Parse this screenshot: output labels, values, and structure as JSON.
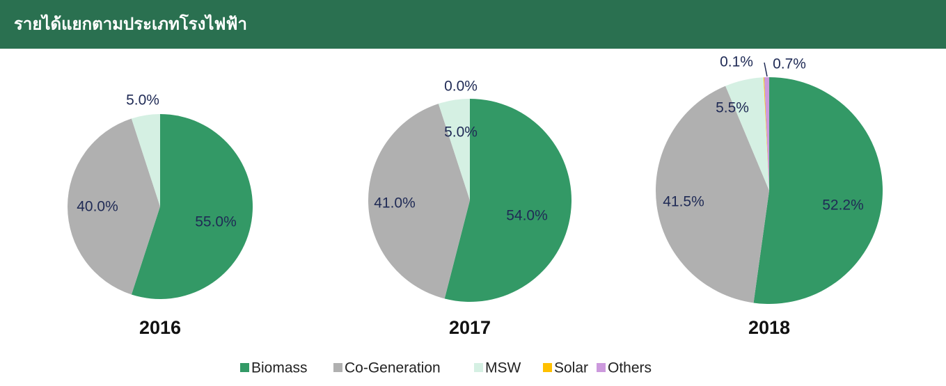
{
  "header": {
    "title": "รายได้แยกตามประเภทโรงไฟฟ้า"
  },
  "legend": [
    {
      "name": "Biomass",
      "color": "#339966"
    },
    {
      "name": "Co-Generation",
      "color": "#b0b0b0"
    },
    {
      "name": "MSW",
      "color": "#d5f0e3"
    },
    {
      "name": "Solar",
      "color": "#ffc000"
    },
    {
      "name": "Others",
      "color": "#cc99dd"
    }
  ],
  "chart_data": [
    {
      "type": "pie",
      "title": "2016",
      "values": [
        55,
        40,
        5,
        null,
        null
      ],
      "value_labels": [
        "55.0%",
        "40.0%",
        "5.0%",
        null,
        null
      ]
    },
    {
      "type": "pie",
      "title": "2017",
      "values": [
        54,
        41,
        5,
        0,
        null
      ],
      "value_labels": [
        "54.0%",
        "41.0%",
        "5.0%",
        "0.0%",
        null
      ]
    },
    {
      "type": "pie",
      "title": "2018",
      "values": [
        52.2,
        41.5,
        5.5,
        0.1,
        0.7
      ],
      "value_labels": [
        "52.2%",
        "41.5%",
        "5.5%",
        "0.1%",
        "0.7%"
      ]
    }
  ]
}
